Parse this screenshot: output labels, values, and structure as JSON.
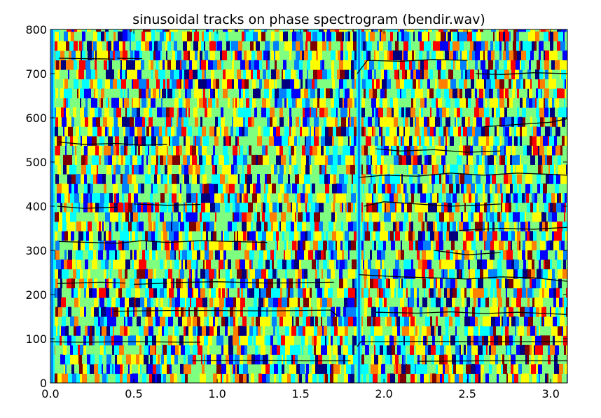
{
  "chart_data": {
    "type": "heatmap",
    "title": "sinusoidal tracks on phase spectrogram (bendir.wav)",
    "xlabel": "",
    "ylabel": "",
    "xlim": [
      0.0,
      3.1
    ],
    "ylim": [
      0,
      800
    ],
    "x_ticks": [
      "0.0",
      "0.5",
      "1.0",
      "1.5",
      "2.0",
      "2.5",
      "3.0"
    ],
    "x_tick_values": [
      0.0,
      0.5,
      1.0,
      1.5,
      2.0,
      2.5,
      3.0
    ],
    "y_ticks": [
      "0",
      "100",
      "200",
      "300",
      "400",
      "500",
      "600",
      "700",
      "800"
    ],
    "y_tick_values": [
      0,
      100,
      200,
      300,
      400,
      500,
      600,
      700,
      800
    ],
    "grid": false,
    "legend": "none",
    "colormap": "jet",
    "colormap_stops": [
      "#00007f",
      "#0000ff",
      "#007fff",
      "#00ffff",
      "#7fff7f",
      "#ffff00",
      "#ff7f00",
      "#ff0000",
      "#7f0000"
    ],
    "background_color": "#7fff7f",
    "track_color": "#000000",
    "bin_height_hz": 21.5,
    "onsets": [
      0.0,
      1.84
    ],
    "tracks": [
      {
        "x": [
          0.0,
          0.2,
          0.4,
          0.6,
          0.8,
          0.9
        ],
        "y": [
          93,
          92,
          93,
          93,
          92,
          92
        ]
      },
      {
        "x": [
          0.85,
          1.2,
          1.5,
          1.8
        ],
        "y": [
          50,
          51,
          50,
          50
        ]
      },
      {
        "x": [
          0.38,
          0.7,
          1.0,
          1.3,
          1.68,
          1.72
        ],
        "y": [
          162,
          164,
          164,
          163,
          165,
          152
        ]
      },
      {
        "x": [
          0.04,
          0.3,
          0.45
        ],
        "y": [
          225,
          228,
          226
        ]
      },
      {
        "x": [
          0.5,
          0.7
        ],
        "y": [
          223,
          226
        ]
      },
      {
        "x": [
          0.72,
          1.0,
          1.3,
          1.7
        ],
        "y": [
          227,
          229,
          226,
          228
        ]
      },
      {
        "x": [
          0.05,
          0.25,
          0.4,
          0.55,
          0.7,
          0.9,
          1.1,
          1.3
        ],
        "y": [
          320,
          318,
          316,
          322,
          318,
          322,
          320,
          318
        ]
      },
      {
        "x": [
          0.04,
          0.2,
          0.4
        ],
        "y": [
          400,
          395,
          398
        ]
      },
      {
        "x": [
          0.5,
          0.7,
          0.9
        ],
        "y": [
          405,
          402,
          404
        ]
      },
      {
        "x": [
          0.05,
          0.2,
          0.4,
          0.55,
          0.7
        ],
        "y": [
          545,
          540,
          542,
          538,
          540
        ]
      },
      {
        "x": [
          0.05,
          0.2,
          0.38
        ],
        "y": [
          735,
          734,
          733
        ]
      },
      {
        "x": [
          0.4,
          0.55
        ],
        "y": [
          735,
          734
        ]
      },
      {
        "x": [
          1.84,
          1.86,
          2.0,
          2.2,
          2.6,
          3.1
        ],
        "y": [
          82,
          93,
          93,
          94,
          93,
          93
        ]
      },
      {
        "x": [
          2.2,
          2.6,
          3.1
        ],
        "y": [
          49,
          50,
          50
        ]
      },
      {
        "x": [
          1.95,
          2.2,
          2.4,
          2.6,
          2.8,
          3.1
        ],
        "y": [
          160,
          158,
          161,
          157,
          160,
          155
        ]
      },
      {
        "x": [
          1.85,
          2.1,
          2.3,
          2.5,
          2.7,
          2.9,
          3.1
        ],
        "y": [
          245,
          240,
          238,
          235,
          240,
          238,
          230
        ]
      },
      {
        "x": [
          2.3,
          2.5,
          2.7
        ],
        "y": [
          300,
          290,
          295
        ]
      },
      {
        "x": [
          2.45,
          2.7,
          2.9,
          3.1
        ],
        "y": [
          345,
          350,
          348,
          352
        ]
      },
      {
        "x": [
          1.88,
          2.0,
          2.2,
          2.4,
          2.55,
          2.7
        ],
        "y": [
          400,
          410,
          405,
          400,
          402,
          405
        ]
      },
      {
        "x": [
          1.85,
          2.0,
          2.2,
          2.4,
          2.6,
          2.8,
          3.0,
          3.1
        ],
        "y": [
          465,
          470,
          468,
          475,
          470,
          475,
          472,
          470
        ]
      },
      {
        "x": [
          1.95,
          2.1,
          2.3,
          2.5,
          2.7
        ],
        "y": [
          530,
          525,
          528,
          522,
          525
        ]
      },
      {
        "x": [
          2.6,
          2.8,
          3.0,
          3.1
        ],
        "y": [
          580,
          585,
          590,
          598
        ]
      },
      {
        "x": [
          1.84,
          1.9,
          2.1,
          2.3,
          2.5
        ],
        "y": [
          700,
          730,
          728,
          732,
          730
        ]
      },
      {
        "x": [
          2.55,
          2.7,
          2.9,
          3.1
        ],
        "y": [
          700,
          698,
          702,
          700
        ]
      }
    ]
  }
}
